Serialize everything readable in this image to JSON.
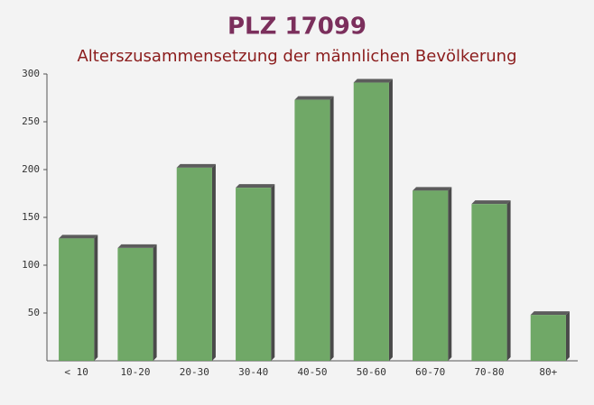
{
  "chart_data": {
    "type": "bar",
    "title": "PLZ 17099",
    "subtitle": "Alterszusammensetzung der männlichen Bevölkerung",
    "categories": [
      "< 10",
      "10-20",
      "20-30",
      "30-40",
      "40-50",
      "50-60",
      "60-70",
      "70-80",
      "80+"
    ],
    "values": [
      128,
      118,
      202,
      181,
      273,
      291,
      178,
      164,
      48
    ],
    "color": "#62a058",
    "ylim": [
      0,
      300
    ],
    "yticks": [
      50,
      100,
      150,
      200,
      250,
      300
    ],
    "grid": false
  }
}
